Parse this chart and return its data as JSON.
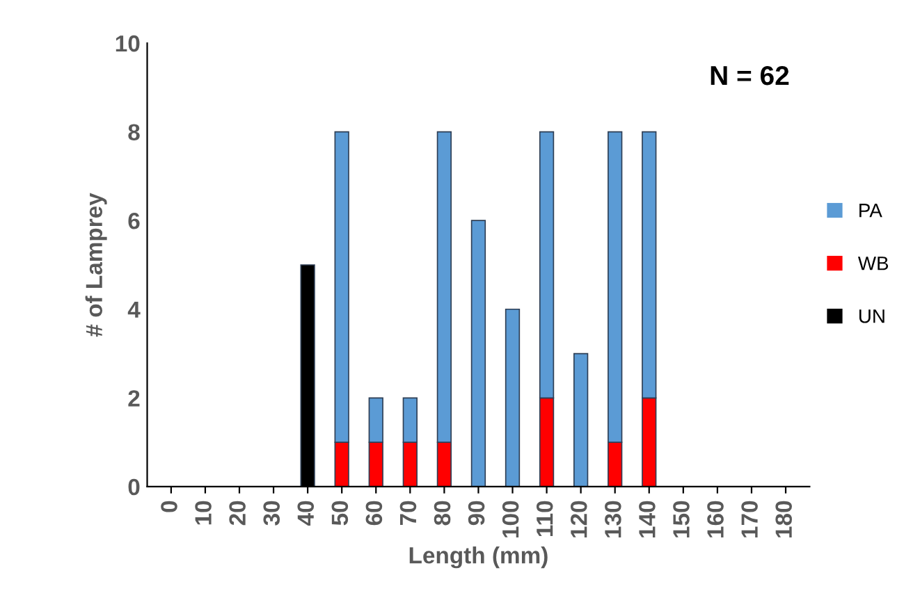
{
  "chart_data": {
    "type": "bar",
    "stacked": true,
    "xlabel": "Length (mm)",
    "ylabel": "# of Lamprey",
    "categories": [
      "0",
      "10",
      "20",
      "30",
      "40",
      "50",
      "60",
      "70",
      "80",
      "90",
      "100",
      "110",
      "120",
      "130",
      "140",
      "150",
      "160",
      "170",
      "180"
    ],
    "series": [
      {
        "name": "UN",
        "color": "#000000",
        "values": [
          0,
          0,
          0,
          0,
          5,
          0,
          0,
          0,
          0,
          0,
          0,
          0,
          0,
          0,
          0,
          0,
          0,
          0,
          0
        ]
      },
      {
        "name": "WB",
        "color": "#ff0000",
        "values": [
          0,
          0,
          0,
          0,
          0,
          1,
          1,
          1,
          1,
          0,
          0,
          2,
          0,
          1,
          2,
          0,
          0,
          0,
          0
        ]
      },
      {
        "name": "PA",
        "color": "#5b9bd5",
        "values": [
          0,
          0,
          0,
          0,
          0,
          7,
          1,
          1,
          7,
          6,
          4,
          6,
          3,
          7,
          6,
          0,
          0,
          0,
          0
        ]
      }
    ],
    "ylim": [
      0,
      10
    ],
    "yticks": [
      0,
      2,
      4,
      6,
      8,
      10
    ],
    "grid": false,
    "legend": "right",
    "annotations": [
      "N = 62"
    ]
  }
}
